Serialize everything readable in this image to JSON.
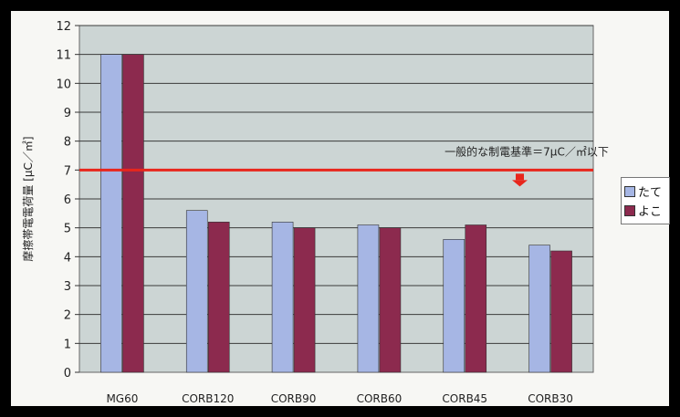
{
  "chart_data": {
    "type": "bar",
    "categories": [
      "MG60",
      "CORB120",
      "CORB90",
      "CORB60",
      "CORB45",
      "CORB30"
    ],
    "series": [
      {
        "name": "たて",
        "values": [
          11.0,
          5.6,
          5.2,
          5.1,
          4.6,
          4.4
        ],
        "color": "#a6b6e4"
      },
      {
        "name": "よこ",
        "values": [
          11.0,
          5.2,
          5.0,
          5.0,
          5.1,
          4.2
        ],
        "color": "#8c2a4e"
      }
    ],
    "ylabel": "摩擦帯電電荷量 [μC／㎡]",
    "ylim": [
      0,
      12
    ],
    "yticks": [
      0,
      1,
      2,
      3,
      4,
      5,
      6,
      7,
      8,
      9,
      10,
      11,
      12
    ],
    "grid": true,
    "legend_position": "right",
    "reference_line": {
      "value": 7,
      "label": "一般的な制電基準＝7μC／㎡以下",
      "color": "#e8261c"
    },
    "plot_background": "#ccd5d4"
  }
}
